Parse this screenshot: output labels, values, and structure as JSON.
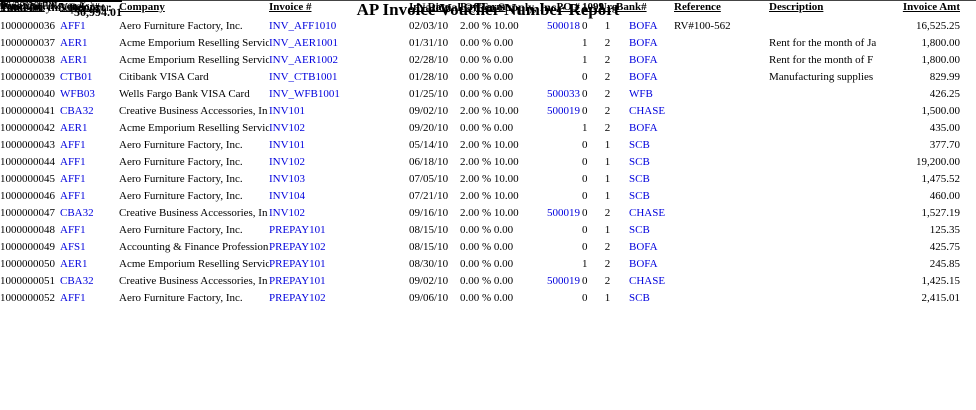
{
  "colors": {
    "link_blue": "#0000DD",
    "text": "#000000",
    "rule": "#444444"
  },
  "header": {
    "date": "10/30/10",
    "time": "06:53:28 PM",
    "printed_by": "Printed By: Supervisor",
    "company": "National Office Supply, Inc.",
    "title": "AP Invoice Voucher Number Report",
    "page": "Page 1 of 1"
  },
  "table": {
    "columns": [
      "Voucher#",
      "Vendor#",
      "Company",
      "Invoice #",
      "Inv Date",
      "Pay Term",
      "PO #",
      "1099",
      "Urg",
      "Bank#",
      "Reference",
      "Description",
      "Invoice Amt"
    ],
    "rows": [
      {
        "voucher": "1000000036",
        "vendor": "AFF1",
        "company": "Aero Furniture Factory, Inc.",
        "invoice": "INV_AFF1010",
        "inv_date": "02/03/10",
        "pay_term": "2.00 % 10.00",
        "po": "500018",
        "t1099": "0",
        "urg": "1",
        "bank": "BOFA",
        "reference": "RV#100-562",
        "description": "",
        "amount": "16,525.25"
      },
      {
        "voucher": "1000000037",
        "vendor": "AER1",
        "company": "Acme Emporium Reselling Servic",
        "invoice": "INV_AER1001",
        "inv_date": "01/31/10",
        "pay_term": "0.00 % 0.00",
        "po": "",
        "t1099": "1",
        "urg": "2",
        "bank": "BOFA",
        "reference": "",
        "description": "Rent for the month of Ja",
        "amount": "1,800.00"
      },
      {
        "voucher": "1000000038",
        "vendor": "AER1",
        "company": "Acme Emporium Reselling Servic",
        "invoice": "INV_AER1002",
        "inv_date": "02/28/10",
        "pay_term": "0.00 % 0.00",
        "po": "",
        "t1099": "1",
        "urg": "2",
        "bank": "BOFA",
        "reference": "",
        "description": "Rent for the month of F",
        "amount": "1,800.00"
      },
      {
        "voucher": "1000000039",
        "vendor": "CTB01",
        "company": "Citibank VISA Card",
        "invoice": "INV_CTB1001",
        "inv_date": "01/28/10",
        "pay_term": "0.00 % 0.00",
        "po": "",
        "t1099": "0",
        "urg": "2",
        "bank": "BOFA",
        "reference": "",
        "description": "Manufacturing supplies",
        "amount": "829.99"
      },
      {
        "voucher": "1000000040",
        "vendor": "WFB03",
        "company": "Wells Fargo Bank VISA Card",
        "invoice": "INV_WFB1001",
        "inv_date": "01/25/10",
        "pay_term": "0.00 % 0.00",
        "po": "500033",
        "t1099": "0",
        "urg": "2",
        "bank": "WFB",
        "reference": "",
        "description": "",
        "amount": "426.25"
      },
      {
        "voucher": "1000000041",
        "vendor": "CBA32",
        "company": "Creative Business Accessories, In",
        "invoice": "INV101",
        "inv_date": "09/02/10",
        "pay_term": "2.00 % 10.00",
        "po": "500019",
        "t1099": "0",
        "urg": "2",
        "bank": "CHASE",
        "reference": "",
        "description": "",
        "amount": "1,500.00"
      },
      {
        "voucher": "1000000042",
        "vendor": "AER1",
        "company": "Acme Emporium Reselling Servic",
        "invoice": "INV102",
        "inv_date": "09/20/10",
        "pay_term": "0.00 % 0.00",
        "po": "",
        "t1099": "1",
        "urg": "2",
        "bank": "BOFA",
        "reference": "",
        "description": "",
        "amount": "435.00"
      },
      {
        "voucher": "1000000043",
        "vendor": "AFF1",
        "company": "Aero Furniture Factory, Inc.",
        "invoice": "INV101",
        "inv_date": "05/14/10",
        "pay_term": "2.00 % 10.00",
        "po": "",
        "t1099": "0",
        "urg": "1",
        "bank": "SCB",
        "reference": "",
        "description": "",
        "amount": "377.70"
      },
      {
        "voucher": "1000000044",
        "vendor": "AFF1",
        "company": "Aero Furniture Factory, Inc.",
        "invoice": "INV102",
        "inv_date": "06/18/10",
        "pay_term": "2.00 % 10.00",
        "po": "",
        "t1099": "0",
        "urg": "1",
        "bank": "SCB",
        "reference": "",
        "description": "",
        "amount": "19,200.00"
      },
      {
        "voucher": "1000000045",
        "vendor": "AFF1",
        "company": "Aero Furniture Factory, Inc.",
        "invoice": "INV103",
        "inv_date": "07/05/10",
        "pay_term": "2.00 % 10.00",
        "po": "",
        "t1099": "0",
        "urg": "1",
        "bank": "SCB",
        "reference": "",
        "description": "",
        "amount": "1,475.52"
      },
      {
        "voucher": "1000000046",
        "vendor": "AFF1",
        "company": "Aero Furniture Factory, Inc.",
        "invoice": "INV104",
        "inv_date": "07/21/10",
        "pay_term": "2.00 % 10.00",
        "po": "",
        "t1099": "0",
        "urg": "1",
        "bank": "SCB",
        "reference": "",
        "description": "",
        "amount": "460.00"
      },
      {
        "voucher": "1000000047",
        "vendor": "CBA32",
        "company": "Creative Business Accessories, In",
        "invoice": "INV102",
        "inv_date": "09/16/10",
        "pay_term": "2.00 % 10.00",
        "po": "500019",
        "t1099": "0",
        "urg": "2",
        "bank": "CHASE",
        "reference": "",
        "description": "",
        "amount": "1,527.19"
      },
      {
        "voucher": "1000000048",
        "vendor": "AFF1",
        "company": "Aero Furniture Factory, Inc.",
        "invoice": "PREPAY101",
        "inv_date": "08/15/10",
        "pay_term": "0.00 % 0.00",
        "po": "",
        "t1099": "0",
        "urg": "1",
        "bank": "SCB",
        "reference": "",
        "description": "",
        "amount": "125.35"
      },
      {
        "voucher": "1000000049",
        "vendor": "AFS1",
        "company": "Accounting & Finance Profession",
        "invoice": "PREPAY102",
        "inv_date": "08/15/10",
        "pay_term": "0.00 % 0.00",
        "po": "",
        "t1099": "0",
        "urg": "2",
        "bank": "BOFA",
        "reference": "",
        "description": "",
        "amount": "425.75"
      },
      {
        "voucher": "1000000050",
        "vendor": "AER1",
        "company": "Acme Emporium Reselling Servic",
        "invoice": "PREPAY101",
        "inv_date": "08/30/10",
        "pay_term": "0.00 % 0.00",
        "po": "",
        "t1099": "1",
        "urg": "2",
        "bank": "BOFA",
        "reference": "",
        "description": "",
        "amount": "245.85"
      },
      {
        "voucher": "1000000051",
        "vendor": "CBA32",
        "company": "Creative Business Accessories, In",
        "invoice": "PREPAY101",
        "inv_date": "09/02/10",
        "pay_term": "0.00 % 0.00",
        "po": "500019",
        "t1099": "0",
        "urg": "2",
        "bank": "CHASE",
        "reference": "",
        "description": "",
        "amount": "1,425.15"
      },
      {
        "voucher": "1000000052",
        "vendor": "AFF1",
        "company": "Aero Furniture Factory, Inc.",
        "invoice": "PREPAY102",
        "inv_date": "09/06/10",
        "pay_term": "0.00 % 0.00",
        "po": "",
        "t1099": "0",
        "urg": "1",
        "bank": "SCB",
        "reference": "",
        "description": "",
        "amount": "2,415.01"
      }
    ]
  },
  "footer": {
    "record_count": "Report: 17 Record(s)",
    "total_label": "Total for this Report :",
    "total_amount": "50,994.01"
  }
}
